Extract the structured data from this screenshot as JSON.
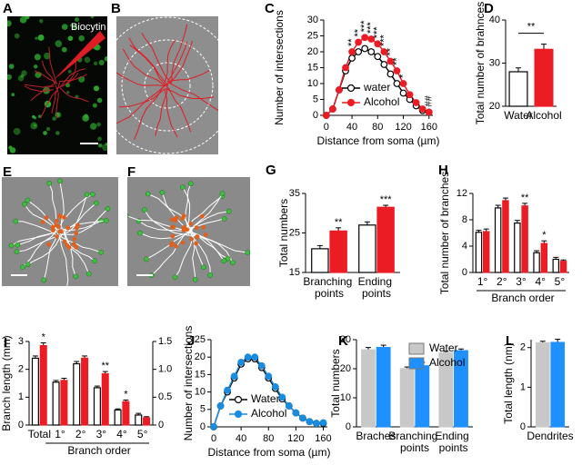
{
  "images": [
    {
      "panel": "A",
      "label": "Biocytin"
    },
    {
      "panel": "B"
    },
    {
      "panel": "E"
    },
    {
      "panel": "F"
    }
  ],
  "chart_data": [
    {
      "panel": "C",
      "type": "line",
      "xlabel": "Distance from soma (µm)",
      "ylabel": "Number of intersections",
      "x": [
        0,
        10,
        20,
        30,
        40,
        50,
        60,
        70,
        80,
        90,
        100,
        110,
        120,
        130,
        140,
        150,
        160
      ],
      "series": [
        {
          "name": "water",
          "color": "#000000",
          "marker": "open",
          "values": [
            0,
            2,
            8,
            14,
            18,
            20,
            21,
            20,
            18.5,
            16,
            13,
            10,
            7,
            5,
            3,
            1.5,
            1
          ]
        },
        {
          "name": "Alcohol",
          "color": "#ec1c24",
          "marker": "filled",
          "values": [
            0,
            2,
            8,
            15,
            20,
            23,
            24.5,
            24,
            22.5,
            20,
            17,
            14,
            10,
            6.5,
            4,
            2,
            1
          ]
        }
      ],
      "significance": [
        null,
        null,
        null,
        null,
        "**",
        "**",
        "***",
        "***",
        "***",
        "***",
        "**",
        "**",
        "*",
        null,
        null,
        null,
        "##"
      ],
      "xlim": [
        -4,
        166
      ],
      "xticks": [
        0,
        40,
        80,
        120,
        160
      ],
      "ylim": [
        0,
        30
      ],
      "yticks": [
        0,
        5,
        10,
        15,
        20,
        25,
        30
      ],
      "legend": "lower left"
    },
    {
      "panel": "D",
      "type": "bar",
      "ylabel": "Total number of brahnces",
      "categories": [
        "Water",
        "Alcohol"
      ],
      "series": [
        {
          "color": "#ffffff",
          "values": [
            28,
            null
          ],
          "errors": [
            0.9,
            null
          ]
        },
        {
          "color": "#ec1c24",
          "values": [
            null,
            33.2
          ],
          "errors": [
            null,
            1.2
          ]
        }
      ],
      "ylim": [
        20,
        40
      ],
      "yticks": [
        20,
        30,
        40
      ],
      "significance": "**"
    },
    {
      "panel": "G",
      "type": "bar",
      "ylabel": "Total numbers",
      "categories": [
        "Branching points",
        "Ending points"
      ],
      "series": [
        {
          "color": "#ffffff",
          "values": [
            21,
            27
          ],
          "errors": [
            0.8,
            0.8
          ]
        },
        {
          "color": "#ec1c24",
          "values": [
            25.5,
            31.5
          ],
          "errors": [
            0.8,
            0.5
          ],
          "significance": [
            "**",
            "***"
          ]
        }
      ],
      "ylim": [
        15,
        35
      ],
      "yticks": [
        15,
        25,
        35
      ]
    },
    {
      "panel": "H",
      "type": "bar",
      "ylabel": "Total number of branches",
      "xlabel": "Branch order",
      "categories": [
        "1°",
        "2°",
        "3°",
        "4°",
        "5°"
      ],
      "series": [
        {
          "color": "#ffffff",
          "values": [
            6.1,
            9.8,
            7.5,
            3.0,
            2.0
          ],
          "errors": [
            0.3,
            0.4,
            0.4,
            0.3,
            0.3
          ]
        },
        {
          "color": "#ec1c24",
          "values": [
            6.2,
            10.9,
            10.1,
            4.4,
            1.7
          ],
          "errors": [
            0.4,
            0.4,
            0.4,
            0.4,
            0.2
          ],
          "significance": [
            null,
            null,
            "**",
            "*",
            null
          ]
        }
      ],
      "ylim": [
        0,
        12
      ],
      "yticks": [
        0,
        4,
        8,
        12
      ]
    },
    {
      "panel": "I",
      "type": "bar",
      "ylabel": "Branch length (mm)",
      "xlabel": "Branch order",
      "categories": [
        "Total",
        "1°",
        "2°",
        "3°",
        "4°",
        "5°"
      ],
      "series": [
        {
          "color": "#ffffff",
          "values": [
            2.4,
            null,
            null,
            null,
            null,
            null
          ],
          "errors": [
            0.08,
            null,
            null,
            null,
            null,
            null
          ]
        },
        {
          "color": "#ec1c24",
          "values": [
            2.85,
            null,
            null,
            null,
            null,
            null
          ],
          "errors": [
            0.1,
            null,
            null,
            null,
            null,
            null
          ],
          "significance": [
            "*",
            null,
            null,
            null,
            null,
            null
          ]
        },
        {
          "color": "#ffffff",
          "axis": "y2",
          "values": [
            null,
            0.77,
            1.1,
            0.67,
            0.27,
            0.18
          ],
          "errors": [
            null,
            0.03,
            0.04,
            0.03,
            0.02,
            0.03
          ]
        },
        {
          "color": "#ec1c24",
          "axis": "y2",
          "values": [
            null,
            0.8,
            1.2,
            0.92,
            0.42,
            0.13
          ],
          "errors": [
            null,
            0.04,
            0.04,
            0.04,
            0.03,
            0.02
          ],
          "significance": [
            null,
            null,
            null,
            "**",
            "*",
            null
          ]
        }
      ],
      "ylim": [
        0,
        3
      ],
      "yticks": [
        0,
        1,
        2,
        3
      ],
      "y2lim": [
        0,
        1.5
      ],
      "y2ticks": [
        0,
        0.5,
        {
          "value": 1,
          "label": "1.0"
        },
        1.5
      ]
    },
    {
      "panel": "J",
      "type": "line",
      "xlabel": "Distance from soma (µm)",
      "ylabel": "Number of intersections",
      "x": [
        0,
        10,
        20,
        30,
        40,
        50,
        60,
        70,
        80,
        90,
        100,
        110,
        120,
        130,
        140,
        150,
        160
      ],
      "series": [
        {
          "name": "Water",
          "color": "#000000",
          "marker": "open",
          "values": [
            0,
            6,
            10,
            14,
            18,
            19.5,
            19.5,
            17,
            14,
            11,
            8,
            6,
            4,
            2.5,
            1.5,
            1,
            1
          ]
        },
        {
          "name": "Alcohol",
          "color": "#1a8ce0",
          "marker": "filled",
          "values": [
            0,
            6,
            10.5,
            14.5,
            18.5,
            20,
            20,
            17.5,
            14.5,
            11.5,
            8.5,
            6,
            4,
            2.5,
            1.5,
            1,
            1.2
          ]
        }
      ],
      "xlim": [
        -4,
        166
      ],
      "xticks": [
        0,
        40,
        80,
        120,
        160
      ],
      "ylim": [
        0,
        25
      ],
      "yticks": [
        0,
        5,
        10,
        15,
        20,
        25
      ],
      "legend": "lower left"
    },
    {
      "panel": "K",
      "type": "bar",
      "ylabel": "Total numbers",
      "categories": [
        "Braches",
        "Branching points",
        "Ending points"
      ],
      "series": [
        {
          "name": "Water",
          "color": "#c8c8c8",
          "values": [
            26.5,
            20,
            25.5
          ],
          "errors": [
            0.8,
            0.6,
            0.5
          ]
        },
        {
          "name": "Alcohol",
          "color": "#1e90ff",
          "values": [
            27.3,
            21,
            26.2
          ],
          "errors": [
            0.8,
            1.2,
            0.6
          ]
        }
      ],
      "ylim": [
        0,
        30
      ],
      "yticks": [
        0,
        10,
        20,
        30
      ],
      "legend": "upper right"
    },
    {
      "panel": "L",
      "type": "bar",
      "ylabel": "Total length (nm)",
      "categories": [
        "Dendrites"
      ],
      "series": [
        {
          "color": "#c8c8c8",
          "values": [
            2.12
          ],
          "errors": [
            0.04
          ]
        },
        {
          "color": "#1e90ff",
          "values": [
            2.13
          ],
          "errors": [
            0.08
          ]
        }
      ],
      "ylim": [
        0,
        2.2
      ],
      "yticks": [
        0,
        1,
        2
      ]
    }
  ]
}
